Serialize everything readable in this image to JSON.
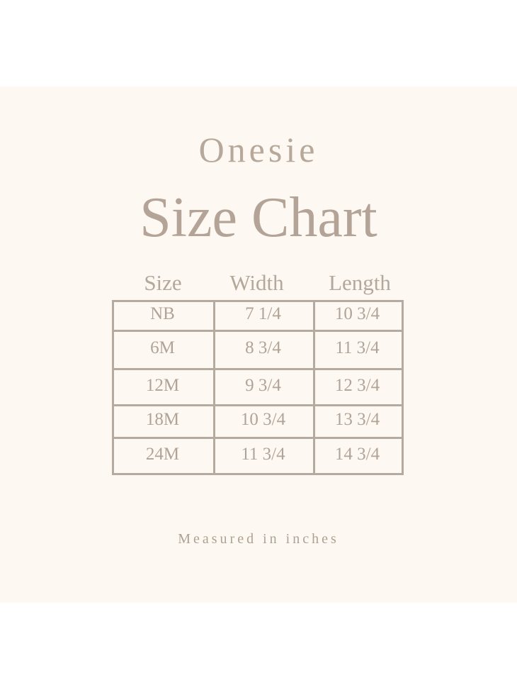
{
  "title": "Onesie",
  "subtitle": "Size Chart",
  "headers": [
    "Size",
    "Width",
    "Length"
  ],
  "rows": [
    [
      "NB",
      "7 1/4",
      "10 3/4"
    ],
    [
      "6M",
      "8 3/4",
      "11 3/4"
    ],
    [
      "12M",
      "9 3/4",
      "12 3/4"
    ],
    [
      "18M",
      "10 3/4",
      "13 3/4"
    ],
    [
      "24M",
      "11 3/4",
      "14 3/4"
    ]
  ],
  "note": "Measured in inches",
  "colors": {
    "background": "#fdf8f1",
    "text": "#b3a497",
    "lines": "#b5aa9f"
  }
}
